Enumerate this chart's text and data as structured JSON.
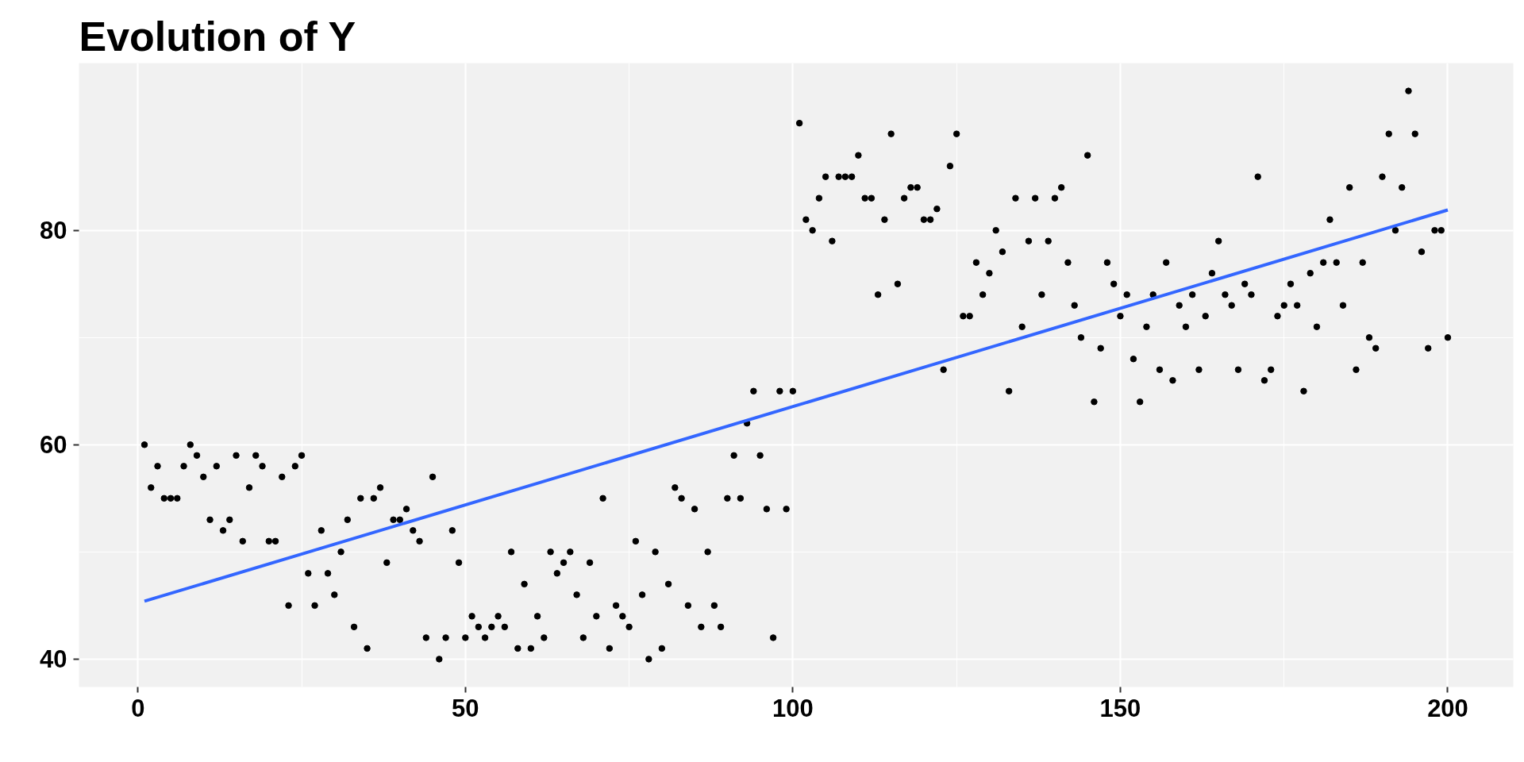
{
  "chart_data": {
    "type": "scatter",
    "title": "Evolution of Y",
    "x": [
      1,
      2,
      3,
      4,
      5,
      6,
      7,
      8,
      9,
      10,
      11,
      12,
      13,
      14,
      15,
      16,
      17,
      18,
      19,
      20,
      21,
      22,
      23,
      24,
      25,
      26,
      27,
      28,
      29,
      30,
      31,
      32,
      33,
      34,
      35,
      36,
      37,
      38,
      39,
      40,
      41,
      42,
      43,
      44,
      45,
      46,
      47,
      48,
      49,
      50,
      51,
      52,
      53,
      54,
      55,
      56,
      57,
      58,
      59,
      60,
      61,
      62,
      63,
      64,
      65,
      66,
      67,
      68,
      69,
      70,
      71,
      72,
      73,
      74,
      75,
      76,
      77,
      78,
      79,
      80,
      81,
      82,
      83,
      84,
      85,
      86,
      87,
      88,
      89,
      90,
      91,
      92,
      93,
      94,
      95,
      96,
      97,
      98,
      99,
      100,
      101,
      102,
      103,
      104,
      105,
      106,
      107,
      108,
      109,
      110,
      111,
      112,
      113,
      114,
      115,
      116,
      117,
      118,
      119,
      120,
      121,
      122,
      123,
      124,
      125,
      126,
      127,
      128,
      129,
      130,
      131,
      132,
      133,
      134,
      135,
      136,
      137,
      138,
      139,
      140,
      141,
      142,
      143,
      144,
      145,
      146,
      147,
      148,
      149,
      150,
      151,
      152,
      153,
      154,
      155,
      156,
      157,
      158,
      159,
      160,
      161,
      162,
      163,
      164,
      165,
      166,
      167,
      168,
      169,
      170,
      171,
      172,
      173,
      174,
      175,
      176,
      177,
      178,
      179,
      180,
      181,
      182,
      183,
      184,
      185,
      186,
      187,
      188,
      189,
      190,
      191,
      192,
      193,
      194,
      195,
      196,
      197,
      198,
      199,
      200
    ],
    "series": [
      {
        "color": "#000000",
        "values": [
          60,
          56,
          58,
          55,
          55,
          55,
          58,
          60,
          59,
          57,
          53,
          58,
          52,
          53,
          59,
          51,
          56,
          59,
          58,
          51,
          51,
          57,
          45,
          58,
          59,
          48,
          45,
          52,
          48,
          46,
          50,
          53,
          43,
          55,
          41,
          55,
          56,
          49,
          53,
          53,
          54,
          52,
          51,
          42,
          57,
          40,
          42,
          52,
          49,
          42,
          44,
          43,
          42,
          43,
          44,
          43,
          50,
          41,
          47,
          41,
          44,
          42,
          50,
          48,
          49,
          50,
          46,
          42,
          49,
          44,
          55,
          41,
          45,
          44,
          43,
          51,
          46,
          40,
          50,
          41,
          47,
          56,
          55,
          45,
          54,
          43,
          50,
          45,
          43,
          55,
          59,
          55,
          62,
          65,
          59,
          54,
          42,
          65,
          54,
          65,
          90,
          81,
          80,
          83,
          85,
          79,
          85,
          85,
          85,
          87,
          83,
          83,
          74,
          81,
          89,
          75,
          83,
          84,
          84,
          81,
          81,
          82,
          67,
          86,
          89,
          72,
          72,
          77,
          74,
          76,
          80,
          78,
          65,
          83,
          71,
          79,
          83,
          74,
          79,
          83,
          84,
          77,
          73,
          70,
          87,
          64,
          69,
          77,
          75,
          72,
          74,
          68,
          64,
          71,
          74,
          67,
          77,
          66,
          73,
          71,
          74,
          67,
          72,
          76,
          79,
          74,
          73,
          67,
          75,
          74,
          85,
          66,
          67,
          72,
          73,
          75,
          73,
          65,
          76,
          71,
          77,
          81,
          77,
          73,
          84,
          67,
          77,
          70,
          69,
          85,
          89,
          80,
          84,
          93,
          89,
          78,
          69,
          80,
          80,
          70
        ]
      },
      {
        "type": "line",
        "marker": "none",
        "color": "#3366ff",
        "x": [
          1,
          200
        ],
        "values": [
          45.4,
          81.9
        ]
      }
    ],
    "xlim": [
      -9,
      210
    ],
    "ylim": [
      37.4,
      95.6
    ],
    "xticks": [
      0,
      50,
      100,
      150,
      200
    ],
    "yticks": [
      40,
      60,
      80
    ],
    "grid": true,
    "marker": "circle"
  }
}
